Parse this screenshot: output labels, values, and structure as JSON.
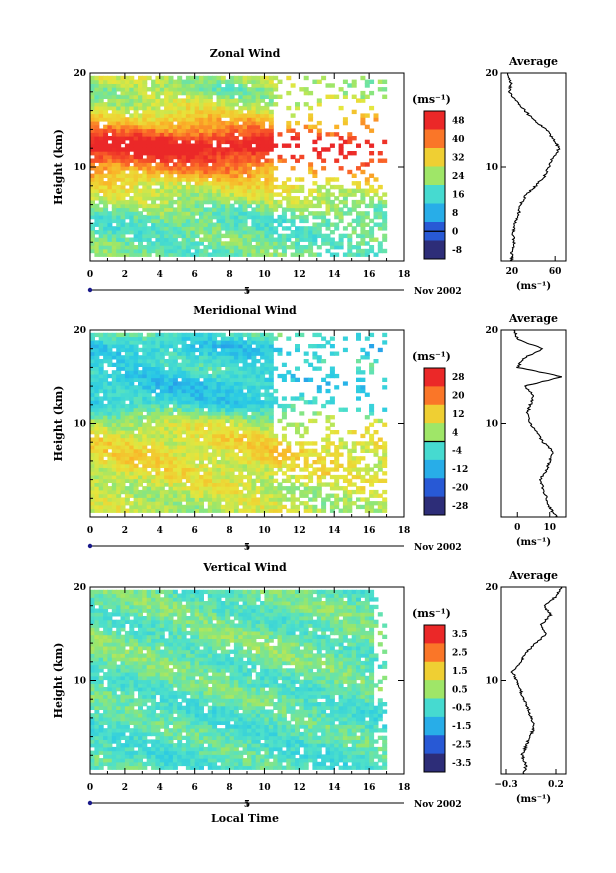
{
  "date_label": "Nov 2002",
  "common_xlabel": "Local Time",
  "chart_data": [
    {
      "type": "heatmap",
      "title": "Zonal Wind",
      "ylabel": "Height (km)",
      "xlim": [
        0,
        18
      ],
      "ylim": [
        0,
        20
      ],
      "xticks": [
        "0",
        "2",
        "4",
        "6",
        "8",
        "10",
        "12",
        "14",
        "16",
        "18"
      ],
      "yticks": [
        "10",
        "20"
      ],
      "date_marker": "5",
      "colorbar": {
        "unit": "(ms⁻¹)",
        "tick_labels": [
          "48",
          "40",
          "32",
          "24",
          "16",
          "8",
          "0",
          "-8"
        ],
        "levels": [
          -8,
          0,
          8,
          16,
          24,
          32,
          40,
          48
        ],
        "contour_level": 0
      },
      "field_profile": {
        "heights_km": [
          2,
          4,
          6,
          8,
          10,
          12,
          14,
          16,
          18,
          19.5
        ],
        "values": [
          20,
          18,
          24,
          30,
          40,
          52,
          38,
          28,
          22,
          26
        ]
      },
      "sparse_start_hour": 10.3,
      "average_profile": {
        "title": "Average",
        "xlim": [
          10,
          70
        ],
        "xticks": [
          "20",
          "60"
        ],
        "xlabel": "(ms⁻¹)",
        "heights_km": [
          0,
          1,
          2,
          3,
          4,
          5,
          6,
          7,
          8,
          9,
          10,
          11,
          12,
          13,
          14,
          15,
          16,
          17,
          18,
          19,
          20
        ],
        "values": [
          20,
          20,
          22,
          21,
          23,
          26,
          28,
          33,
          42,
          50,
          54,
          58,
          64,
          58,
          52,
          40,
          32,
          24,
          18,
          19,
          16
        ]
      }
    },
    {
      "type": "heatmap",
      "title": "Meridional Wind",
      "ylabel": "Height (km)",
      "xlim": [
        0,
        18
      ],
      "ylim": [
        0,
        20
      ],
      "xticks": [
        "0",
        "2",
        "4",
        "6",
        "8",
        "10",
        "12",
        "14",
        "16",
        "18"
      ],
      "yticks": [
        "10",
        "20"
      ],
      "date_marker": "5",
      "colorbar": {
        "unit": "(ms⁻¹)",
        "tick_labels": [
          "28",
          "20",
          "12",
          "4",
          "-4",
          "-12",
          "-20",
          "-28"
        ],
        "levels": [
          -28,
          -20,
          -12,
          -4,
          4,
          12,
          20,
          28
        ],
        "contour_level": 0
      },
      "field_profile": {
        "heights_km": [
          2,
          4,
          6,
          8,
          10,
          12,
          14,
          16,
          18,
          19.5
        ],
        "values": [
          6,
          8,
          10,
          10,
          6,
          -6,
          -8,
          -4,
          -8,
          -2
        ]
      },
      "sparse_start_hour": 10.3,
      "average_profile": {
        "title": "Average",
        "xlim": [
          -5,
          15
        ],
        "xticks": [
          "0",
          "10"
        ],
        "xlabel": "(ms⁻¹)",
        "heights_km": [
          0,
          1,
          2,
          3,
          4,
          5,
          6,
          7,
          8,
          9,
          10,
          11,
          12,
          13,
          14,
          15,
          16,
          17,
          18,
          19,
          20
        ],
        "values": [
          12,
          10,
          9,
          8,
          7,
          9,
          10,
          11,
          8,
          6,
          4,
          3,
          4,
          5,
          2,
          14,
          0,
          2,
          8,
          0,
          -1
        ]
      }
    },
    {
      "type": "heatmap",
      "title": "Vertical Wind",
      "ylabel": "Height (km)",
      "xlabel": "Local Time",
      "xlim": [
        0,
        18
      ],
      "ylim": [
        0,
        20
      ],
      "xticks": [
        "0",
        "2",
        "4",
        "6",
        "8",
        "10",
        "12",
        "14",
        "16",
        "18"
      ],
      "yticks": [
        "10",
        "20"
      ],
      "date_marker": "5",
      "colorbar": {
        "unit": "(ms⁻¹)",
        "tick_labels": [
          "3.5",
          "2.5",
          "1.5",
          "0.5",
          "-0.5",
          "-1.5",
          "-2.5",
          "-3.5"
        ],
        "levels": [
          -3.5,
          -2.5,
          -1.5,
          -0.5,
          0.5,
          1.5,
          2.5,
          3.5
        ],
        "contour_level": null
      },
      "field_profile": {
        "heights_km": [
          2,
          4,
          6,
          8,
          10,
          12,
          14,
          16,
          18,
          19.5
        ],
        "values": [
          -0.3,
          -0.2,
          -0.3,
          -0.1,
          -0.1,
          0.0,
          0.1,
          -0.1,
          0.0,
          -0.1
        ]
      },
      "sparse_start_hour": 16.2,
      "average_profile": {
        "title": "Average",
        "xlim": [
          -0.35,
          0.3
        ],
        "xticks": [
          "−0.3",
          "0.2"
        ],
        "xlabel": "(ms⁻¹)",
        "heights_km": [
          0,
          1,
          2,
          3,
          4,
          5,
          6,
          7,
          8,
          9,
          10,
          11,
          12,
          13,
          14,
          15,
          16,
          17,
          18,
          19,
          20
        ],
        "values": [
          -0.12,
          -0.1,
          -0.14,
          -0.1,
          -0.06,
          -0.02,
          -0.05,
          -0.08,
          -0.12,
          -0.16,
          -0.2,
          -0.24,
          -0.15,
          -0.1,
          0.0,
          0.1,
          0.05,
          0.15,
          0.08,
          0.2,
          0.25
        ]
      }
    }
  ]
}
